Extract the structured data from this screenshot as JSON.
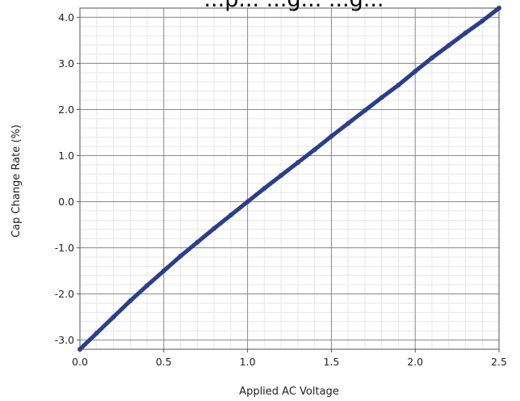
{
  "chart_data": {
    "type": "scatter",
    "title": "...p... ...g... ...g...",
    "xlabel": "Applied AC Voltage",
    "ylabel": "Cap Change Rate (%)",
    "xlim": [
      0.0,
      2.5
    ],
    "ylim": [
      -3.2,
      4.2
    ],
    "x_ticks": [
      0.0,
      0.5,
      1.0,
      1.5,
      2.0,
      2.5
    ],
    "x_tick_labels": [
      "0.0",
      "0.5",
      "1.0",
      "1.5",
      "2.0",
      "2.5"
    ],
    "y_ticks": [
      -3.0,
      -2.0,
      -1.0,
      0.0,
      1.0,
      2.0,
      3.0,
      4.0
    ],
    "y_tick_labels": [
      "-3.0",
      "-2.0",
      "-1.0",
      "0.0",
      "1.0",
      "2.0",
      "3.0",
      "4.0"
    ],
    "grid": true,
    "minor_grid": true,
    "marker_color": "#2b3f8a",
    "series": [
      {
        "x": [
          0.0,
          0.1,
          0.2,
          0.3,
          0.4,
          0.5,
          0.6,
          0.7,
          0.8,
          0.9,
          1.0,
          1.1,
          1.2,
          1.3,
          1.4,
          1.5,
          1.6,
          1.7,
          1.8,
          1.9,
          2.0,
          2.1,
          2.2,
          2.3,
          2.4,
          2.5
        ],
        "y": [
          -3.2,
          -2.85,
          -2.5,
          -2.15,
          -1.82,
          -1.5,
          -1.18,
          -0.88,
          -0.58,
          -0.29,
          0.0,
          0.29,
          0.57,
          0.85,
          1.13,
          1.42,
          1.7,
          1.98,
          2.26,
          2.53,
          2.83,
          3.12,
          3.39,
          3.66,
          3.92,
          4.2
        ]
      }
    ]
  }
}
